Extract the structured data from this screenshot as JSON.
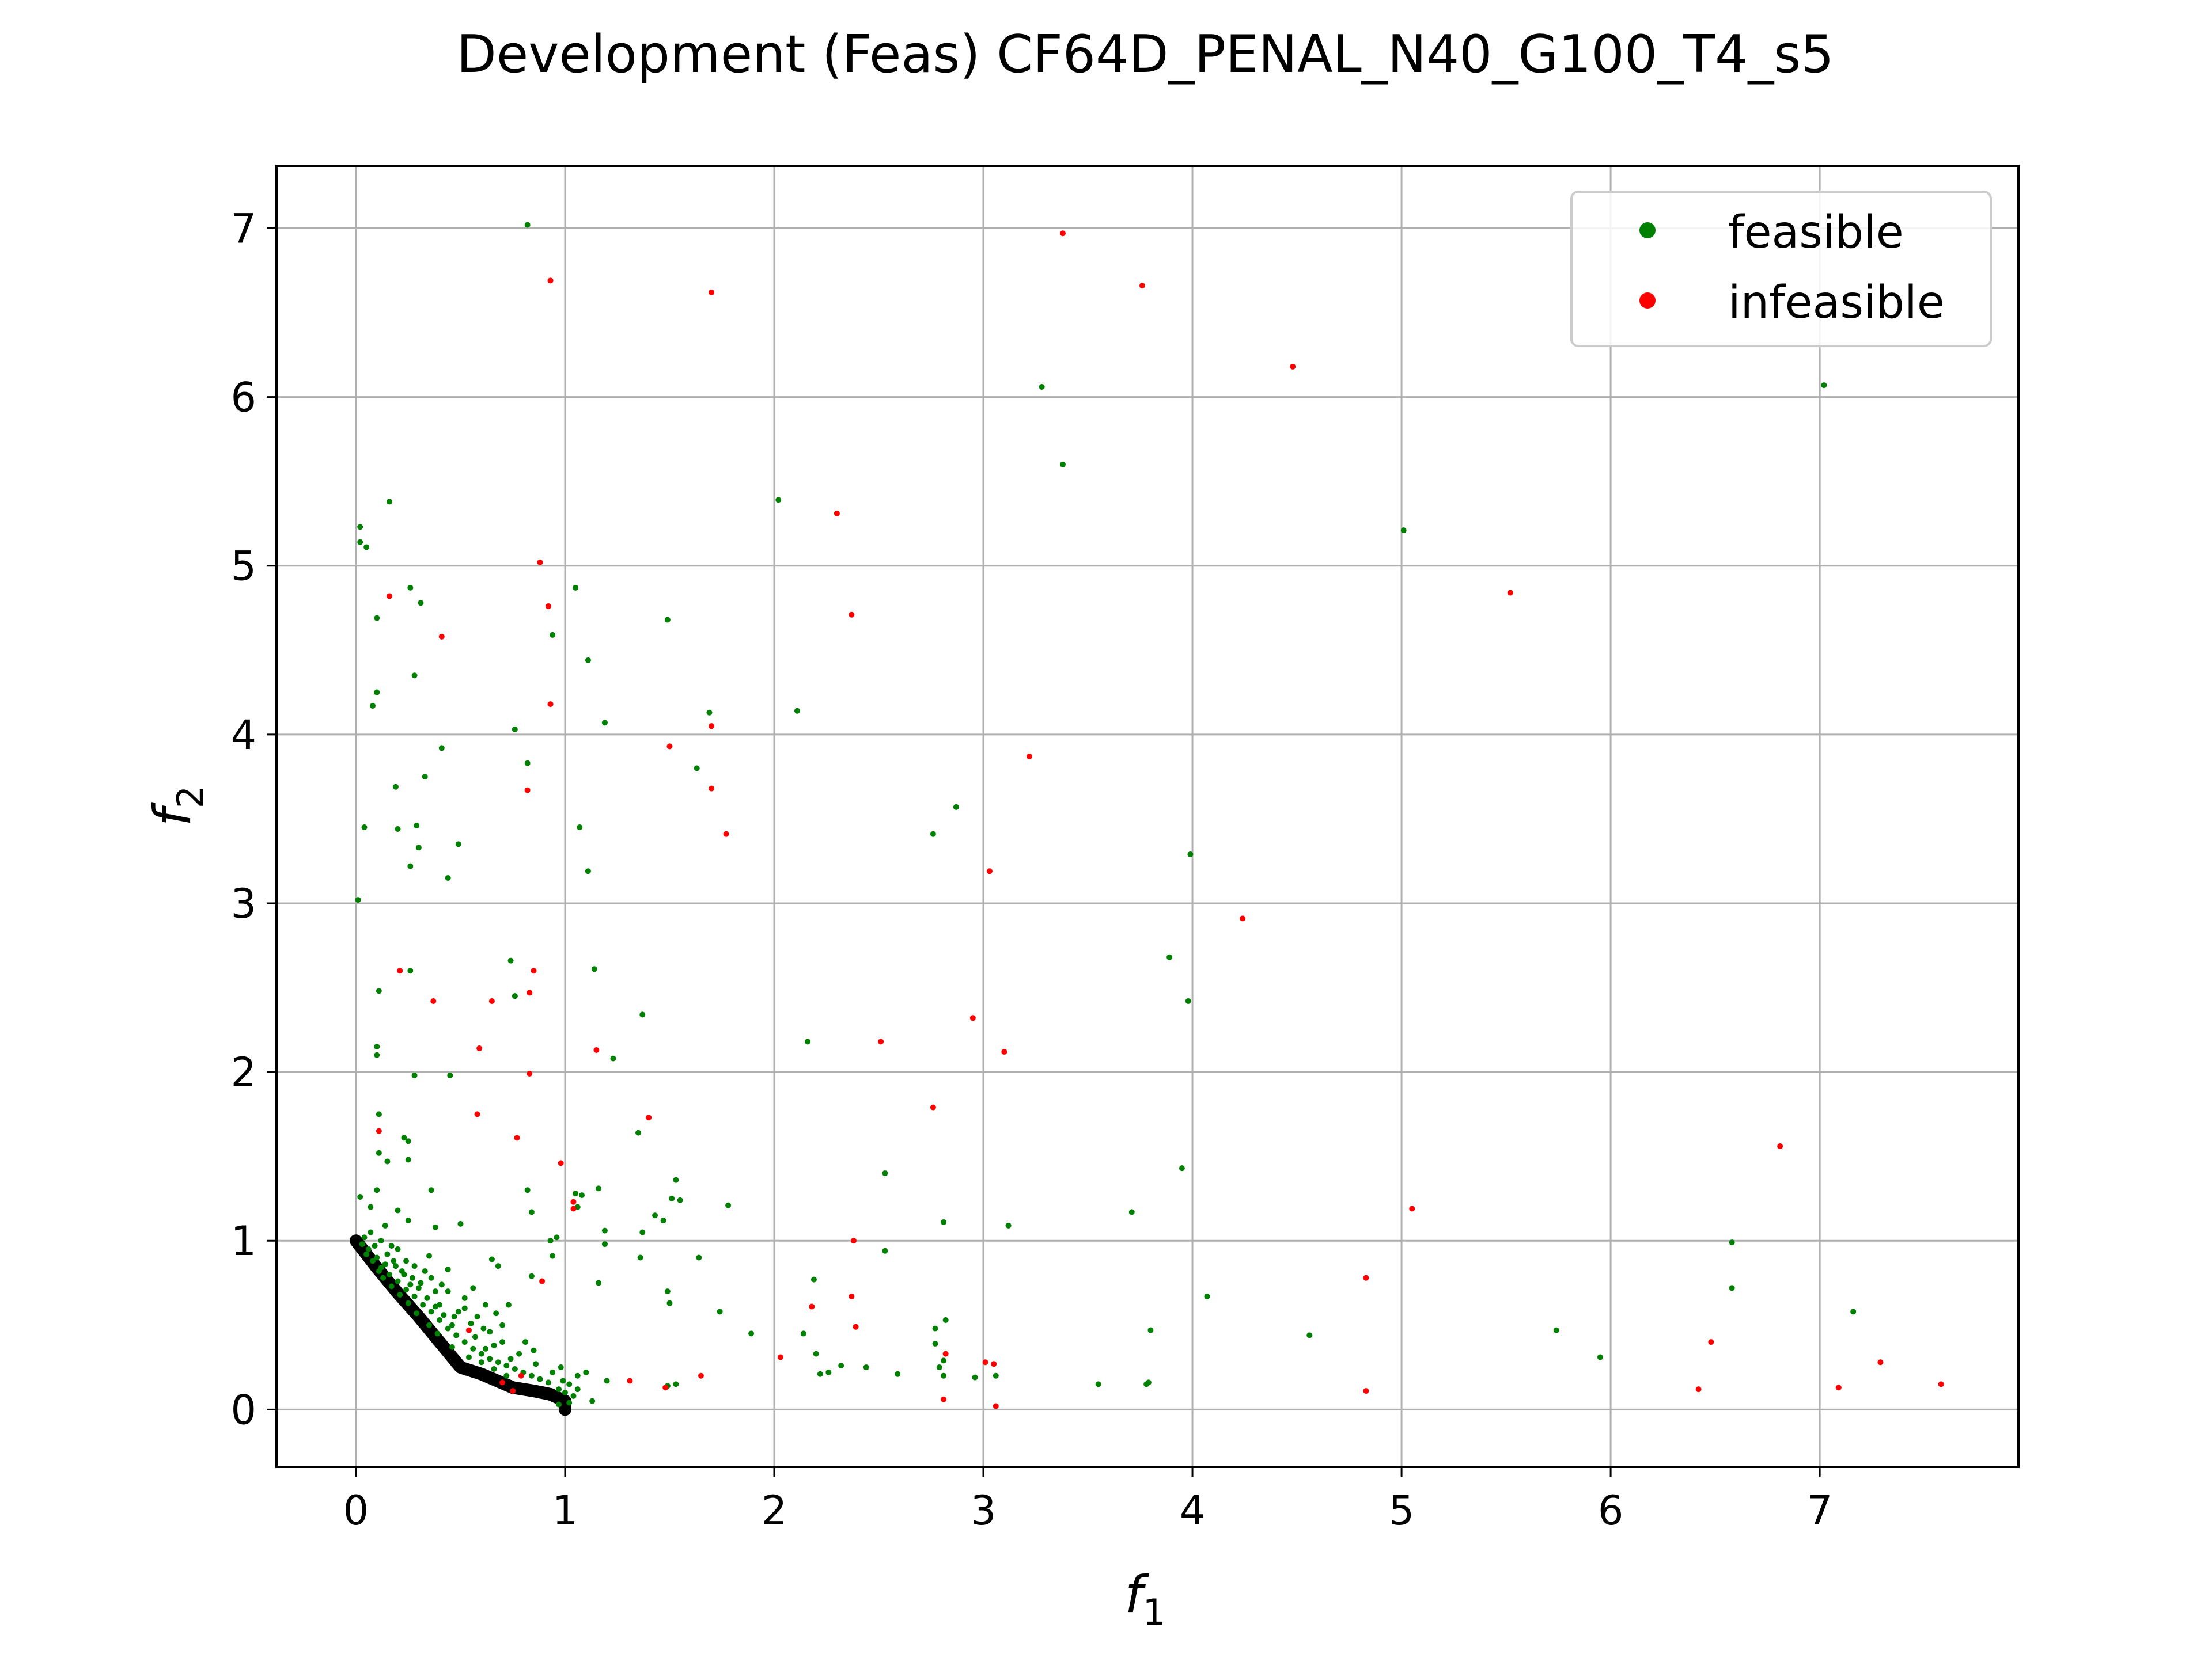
{
  "chart_data": {
    "type": "scatter",
    "title": "Development (Feas) CF64D_PENAL_N40_G100_T4_s5",
    "xlabel": "f",
    "xlabel_sub": "1",
    "ylabel": "f",
    "ylabel_sub": "2",
    "xlim": [
      -0.38,
      7.95
    ],
    "ylim": [
      -0.34,
      7.37
    ],
    "xticks": [
      0,
      1,
      2,
      3,
      4,
      5,
      6,
      7
    ],
    "yticks": [
      0,
      1,
      2,
      3,
      4,
      5,
      6,
      7
    ],
    "grid": true,
    "legend_position": "top-right",
    "front_curve": [
      [
        0.0,
        1.0
      ],
      [
        0.1,
        0.84
      ],
      [
        0.2,
        0.69
      ],
      [
        0.3,
        0.55
      ],
      [
        0.4,
        0.4
      ],
      [
        0.5,
        0.25
      ],
      [
        0.6,
        0.21
      ],
      [
        0.75,
        0.13
      ],
      [
        0.85,
        0.11
      ],
      [
        0.93,
        0.09
      ],
      [
        1.0,
        0.05
      ],
      [
        1.0,
        0.0
      ]
    ],
    "series": [
      {
        "name": "feasible",
        "color": "#008000",
        "points": [
          [
            0.82,
            7.02
          ],
          [
            3.28,
            6.06
          ],
          [
            7.02,
            6.07
          ],
          [
            3.38,
            5.6
          ],
          [
            2.02,
            5.39
          ],
          [
            0.16,
            5.38
          ],
          [
            0.02,
            5.23
          ],
          [
            0.05,
            5.11
          ],
          [
            0.02,
            5.14
          ],
          [
            5.01,
            5.21
          ],
          [
            0.26,
            4.87
          ],
          [
            0.31,
            4.78
          ],
          [
            1.05,
            4.87
          ],
          [
            0.1,
            4.69
          ],
          [
            1.49,
            4.68
          ],
          [
            0.94,
            4.59
          ],
          [
            1.11,
            4.44
          ],
          [
            0.28,
            4.35
          ],
          [
            0.1,
            4.25
          ],
          [
            0.08,
            4.17
          ],
          [
            1.69,
            4.13
          ],
          [
            2.11,
            4.14
          ],
          [
            1.19,
            4.07
          ],
          [
            0.76,
            4.03
          ],
          [
            0.41,
            3.92
          ],
          [
            0.82,
            3.83
          ],
          [
            1.63,
            3.8
          ],
          [
            0.33,
            3.75
          ],
          [
            0.19,
            3.69
          ],
          [
            2.87,
            3.57
          ],
          [
            0.04,
            3.45
          ],
          [
            0.2,
            3.44
          ],
          [
            0.29,
            3.46
          ],
          [
            0.3,
            3.33
          ],
          [
            0.49,
            3.35
          ],
          [
            1.07,
            3.45
          ],
          [
            2.76,
            3.41
          ],
          [
            3.99,
            3.29
          ],
          [
            0.26,
            3.22
          ],
          [
            0.44,
            3.15
          ],
          [
            1.11,
            3.19
          ],
          [
            0.01,
            3.02
          ],
          [
            3.89,
            2.68
          ],
          [
            0.74,
            2.66
          ],
          [
            1.14,
            2.61
          ],
          [
            0.26,
            2.6
          ],
          [
            0.11,
            2.48
          ],
          [
            0.76,
            2.45
          ],
          [
            3.98,
            2.42
          ],
          [
            1.37,
            2.34
          ],
          [
            2.16,
            2.18
          ],
          [
            0.1,
            2.15
          ],
          [
            0.1,
            2.1
          ],
          [
            1.23,
            2.08
          ],
          [
            0.28,
            1.98
          ],
          [
            0.45,
            1.98
          ],
          [
            0.11,
            1.75
          ],
          [
            1.35,
            1.64
          ],
          [
            0.23,
            1.61
          ],
          [
            0.25,
            1.59
          ],
          [
            0.11,
            1.52
          ],
          [
            0.15,
            1.47
          ],
          [
            0.25,
            1.48
          ],
          [
            3.95,
            1.43
          ],
          [
            2.53,
            1.4
          ],
          [
            1.53,
            1.36
          ],
          [
            0.1,
            1.3
          ],
          [
            0.36,
            1.3
          ],
          [
            0.82,
            1.3
          ],
          [
            1.05,
            1.28
          ],
          [
            1.08,
            1.27
          ],
          [
            1.16,
            1.31
          ],
          [
            0.02,
            1.26
          ],
          [
            0.07,
            1.2
          ],
          [
            0.2,
            1.18
          ],
          [
            0.25,
            1.12
          ],
          [
            0.14,
            1.09
          ],
          [
            0.38,
            1.08
          ],
          [
            0.5,
            1.1
          ],
          [
            0.84,
            1.17
          ],
          [
            1.06,
            1.2
          ],
          [
            1.51,
            1.25
          ],
          [
            1.55,
            1.24
          ],
          [
            1.43,
            1.15
          ],
          [
            1.78,
            1.21
          ],
          [
            1.47,
            1.12
          ],
          [
            1.37,
            1.05
          ],
          [
            3.71,
            1.17
          ],
          [
            2.81,
            1.11
          ],
          [
            3.12,
            1.09
          ],
          [
            1.19,
            1.06
          ],
          [
            1.19,
            0.98
          ],
          [
            0.96,
            1.02
          ],
          [
            0.93,
            1.0
          ],
          [
            0.94,
            0.91
          ],
          [
            6.58,
            0.99
          ],
          [
            2.53,
            0.94
          ],
          [
            0.65,
            0.89
          ],
          [
            1.64,
            0.9
          ],
          [
            1.36,
            0.9
          ],
          [
            2.19,
            0.77
          ],
          [
            1.16,
            0.75
          ],
          [
            0.84,
            0.79
          ],
          [
            0.68,
            0.85
          ],
          [
            0.56,
            0.72
          ],
          [
            0.44,
            0.83
          ],
          [
            0.35,
            0.91
          ],
          [
            6.58,
            0.72
          ],
          [
            7.16,
            0.58
          ],
          [
            4.07,
            0.67
          ],
          [
            1.49,
            0.7
          ],
          [
            1.5,
            0.63
          ],
          [
            1.74,
            0.58
          ],
          [
            0.73,
            0.62
          ],
          [
            0.67,
            0.57
          ],
          [
            2.77,
            0.48
          ],
          [
            2.82,
            0.53
          ],
          [
            3.8,
            0.47
          ],
          [
            5.74,
            0.47
          ],
          [
            1.89,
            0.45
          ],
          [
            4.56,
            0.44
          ],
          [
            2.14,
            0.45
          ],
          [
            2.77,
            0.39
          ],
          [
            5.95,
            0.31
          ],
          [
            2.2,
            0.33
          ],
          [
            2.26,
            0.22
          ],
          [
            2.32,
            0.26
          ],
          [
            2.44,
            0.25
          ],
          [
            2.59,
            0.21
          ],
          [
            2.81,
            0.2
          ],
          [
            2.79,
            0.25
          ],
          [
            2.96,
            0.19
          ],
          [
            3.06,
            0.2
          ],
          [
            3.55,
            0.15
          ],
          [
            3.79,
            0.16
          ],
          [
            3.78,
            0.15
          ],
          [
            2.81,
            0.29
          ],
          [
            2.22,
            0.21
          ],
          [
            1.53,
            0.15
          ],
          [
            1.49,
            0.14
          ],
          [
            1.2,
            0.17
          ],
          [
            1.13,
            0.05
          ],
          [
            1.02,
            0.15
          ],
          [
            1.06,
            0.2
          ],
          [
            1.1,
            0.22
          ],
          [
            0.98,
            0.25
          ],
          [
            1.0,
            0.1
          ],
          [
            1.04,
            0.08
          ],
          [
            0.99,
            0.17
          ],
          [
            0.97,
            0.12
          ],
          [
            1.02,
            0.04
          ],
          [
            0.97,
            0.03
          ],
          [
            1.06,
            0.12
          ],
          [
            0.85,
            0.35
          ],
          [
            0.81,
            0.4
          ],
          [
            0.74,
            0.3
          ],
          [
            0.62,
            0.36
          ],
          [
            0.61,
            0.48
          ],
          [
            0.55,
            0.51
          ],
          [
            0.52,
            0.6
          ],
          [
            0.47,
            0.55
          ],
          [
            0.4,
            0.62
          ],
          [
            0.38,
            0.7
          ],
          [
            0.31,
            0.75
          ],
          [
            0.27,
            0.78
          ],
          [
            0.23,
            0.8
          ],
          [
            0.19,
            0.85
          ],
          [
            0.14,
            0.86
          ],
          [
            0.1,
            0.9
          ],
          [
            0.06,
            0.95
          ],
          [
            0.03,
            0.98
          ],
          [
            0.05,
            0.92
          ],
          [
            0.08,
            0.88
          ],
          [
            0.12,
            0.84
          ],
          [
            0.16,
            0.8
          ],
          [
            0.2,
            0.76
          ],
          [
            0.24,
            0.71
          ],
          [
            0.28,
            0.67
          ],
          [
            0.32,
            0.62
          ],
          [
            0.36,
            0.58
          ],
          [
            0.4,
            0.53
          ],
          [
            0.44,
            0.48
          ],
          [
            0.48,
            0.44
          ],
          [
            0.52,
            0.4
          ],
          [
            0.56,
            0.36
          ],
          [
            0.6,
            0.33
          ],
          [
            0.64,
            0.3
          ],
          [
            0.68,
            0.28
          ],
          [
            0.72,
            0.26
          ],
          [
            0.76,
            0.24
          ],
          [
            0.8,
            0.22
          ],
          [
            0.84,
            0.2
          ],
          [
            0.88,
            0.18
          ],
          [
            0.92,
            0.16
          ],
          [
            0.3,
            0.72
          ],
          [
            0.34,
            0.66
          ],
          [
            0.38,
            0.61
          ],
          [
            0.42,
            0.56
          ],
          [
            0.46,
            0.5
          ],
          [
            0.22,
            0.82
          ],
          [
            0.18,
            0.88
          ],
          [
            0.26,
            0.74
          ],
          [
            0.15,
            0.92
          ],
          [
            0.09,
            0.97
          ],
          [
            0.04,
            1.02
          ],
          [
            0.12,
            1.0
          ],
          [
            0.2,
            0.95
          ],
          [
            0.28,
            0.85
          ],
          [
            0.36,
            0.78
          ],
          [
            0.44,
            0.7
          ],
          [
            0.52,
            0.66
          ],
          [
            0.58,
            0.55
          ],
          [
            0.64,
            0.46
          ],
          [
            0.7,
            0.4
          ],
          [
            0.78,
            0.33
          ],
          [
            0.86,
            0.27
          ],
          [
            0.94,
            0.22
          ],
          [
            0.33,
            0.82
          ],
          [
            0.41,
            0.74
          ],
          [
            0.49,
            0.58
          ],
          [
            0.57,
            0.43
          ],
          [
            0.66,
            0.38
          ],
          [
            0.24,
            0.88
          ],
          [
            0.17,
            0.97
          ],
          [
            0.07,
            1.05
          ],
          [
            0.6,
            0.28
          ],
          [
            0.66,
            0.24
          ],
          [
            0.72,
            0.2
          ],
          [
            0.54,
            0.31
          ],
          [
            0.46,
            0.37
          ],
          [
            0.39,
            0.45
          ],
          [
            0.35,
            0.5
          ],
          [
            0.29,
            0.57
          ],
          [
            0.25,
            0.63
          ],
          [
            0.21,
            0.68
          ],
          [
            0.17,
            0.73
          ],
          [
            0.13,
            0.78
          ],
          [
            0.11,
            0.82
          ],
          [
            0.62,
            0.62
          ],
          [
            0.7,
            0.5
          ]
        ]
      },
      {
        "name": "infeasible",
        "color": "#ff0000",
        "points": [
          [
            3.38,
            6.97
          ],
          [
            0.93,
            6.69
          ],
          [
            1.7,
            6.62
          ],
          [
            3.76,
            6.66
          ],
          [
            4.48,
            6.18
          ],
          [
            2.3,
            5.31
          ],
          [
            0.88,
            5.02
          ],
          [
            5.52,
            4.84
          ],
          [
            0.16,
            4.82
          ],
          [
            0.92,
            4.76
          ],
          [
            2.37,
            4.71
          ],
          [
            0.41,
            4.58
          ],
          [
            0.93,
            4.18
          ],
          [
            1.5,
            3.93
          ],
          [
            1.7,
            4.05
          ],
          [
            3.22,
            3.87
          ],
          [
            0.82,
            3.67
          ],
          [
            1.7,
            3.68
          ],
          [
            1.77,
            3.41
          ],
          [
            3.03,
            3.19
          ],
          [
            4.24,
            2.91
          ],
          [
            0.21,
            2.6
          ],
          [
            0.85,
            2.6
          ],
          [
            0.37,
            2.42
          ],
          [
            0.65,
            2.42
          ],
          [
            0.83,
            2.47
          ],
          [
            2.95,
            2.32
          ],
          [
            2.51,
            2.18
          ],
          [
            0.59,
            2.14
          ],
          [
            1.15,
            2.13
          ],
          [
            3.1,
            2.12
          ],
          [
            0.83,
            1.99
          ],
          [
            2.76,
            1.79
          ],
          [
            0.58,
            1.75
          ],
          [
            1.4,
            1.73
          ],
          [
            0.77,
            1.61
          ],
          [
            6.81,
            1.56
          ],
          [
            0.11,
            1.65
          ],
          [
            0.98,
            1.46
          ],
          [
            1.04,
            1.19
          ],
          [
            5.05,
            1.19
          ],
          [
            1.04,
            1.23
          ],
          [
            2.38,
            1.0
          ],
          [
            0.89,
            0.76
          ],
          [
            4.83,
            0.78
          ],
          [
            2.37,
            0.67
          ],
          [
            2.18,
            0.61
          ],
          [
            2.39,
            0.49
          ],
          [
            2.82,
            0.33
          ],
          [
            3.01,
            0.28
          ],
          [
            3.05,
            0.27
          ],
          [
            2.03,
            0.31
          ],
          [
            1.65,
            0.2
          ],
          [
            1.48,
            0.13
          ],
          [
            1.31,
            0.17
          ],
          [
            4.83,
            0.11
          ],
          [
            6.48,
            0.4
          ],
          [
            6.42,
            0.12
          ],
          [
            7.09,
            0.13
          ],
          [
            7.29,
            0.28
          ],
          [
            7.58,
            0.15
          ],
          [
            2.81,
            0.06
          ],
          [
            3.06,
            0.02
          ],
          [
            0.54,
            0.47
          ],
          [
            0.7,
            0.16
          ],
          [
            0.79,
            0.2
          ],
          [
            0.75,
            0.11
          ]
        ]
      }
    ]
  }
}
